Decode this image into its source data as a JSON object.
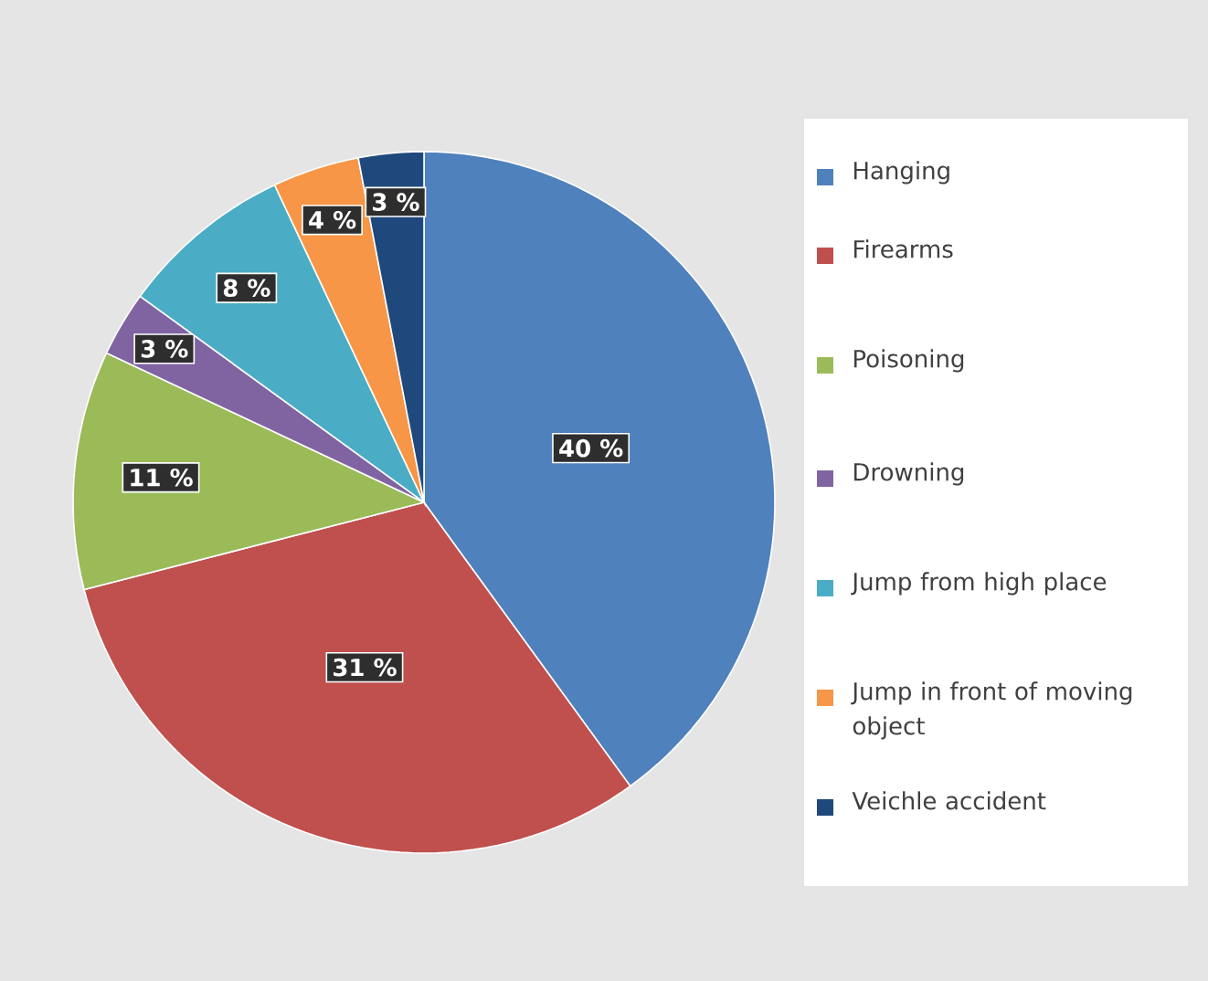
{
  "chart_data": {
    "type": "pie",
    "categories": [
      "Hanging",
      "Firearms",
      "Poisoning",
      "Drowning",
      "Jump from high place",
      "Jump in front of moving object",
      "Veichle accident"
    ],
    "values": [
      40,
      31,
      11,
      3,
      8,
      4,
      3
    ],
    "value_labels": [
      "40 %",
      "31 %",
      "11 %",
      "3 %",
      "8 %",
      "4 %",
      "3 %"
    ],
    "colors": [
      "#4f81bd",
      "#c0504d",
      "#9bbb59",
      "#8064a2",
      "#4bacc6",
      "#f79646",
      "#1f497d"
    ],
    "legend": "right"
  }
}
